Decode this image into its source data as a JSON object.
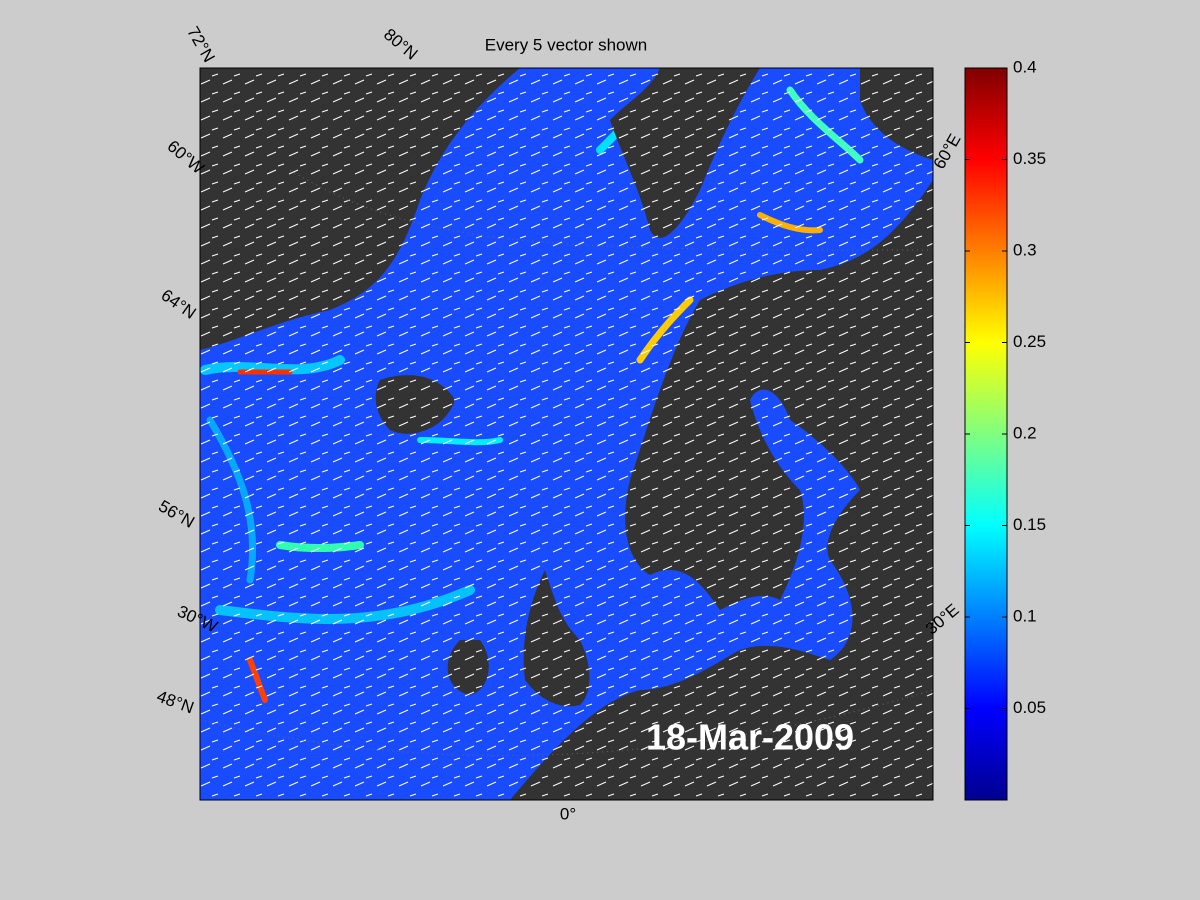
{
  "title": "Every 5 vector shown",
  "date_label": "18-Mar-2009",
  "graticule_labels": [
    "72°N",
    "80°N",
    "60°W",
    "64°N",
    "56°N",
    "30°W",
    "48°N",
    "0°",
    "30°E",
    "60°E"
  ],
  "colorbar": {
    "lim": [
      0,
      0.4
    ],
    "ticks": [
      0.05,
      0.1,
      0.15,
      0.2,
      0.25,
      0.3,
      0.35,
      0.4
    ]
  }
}
